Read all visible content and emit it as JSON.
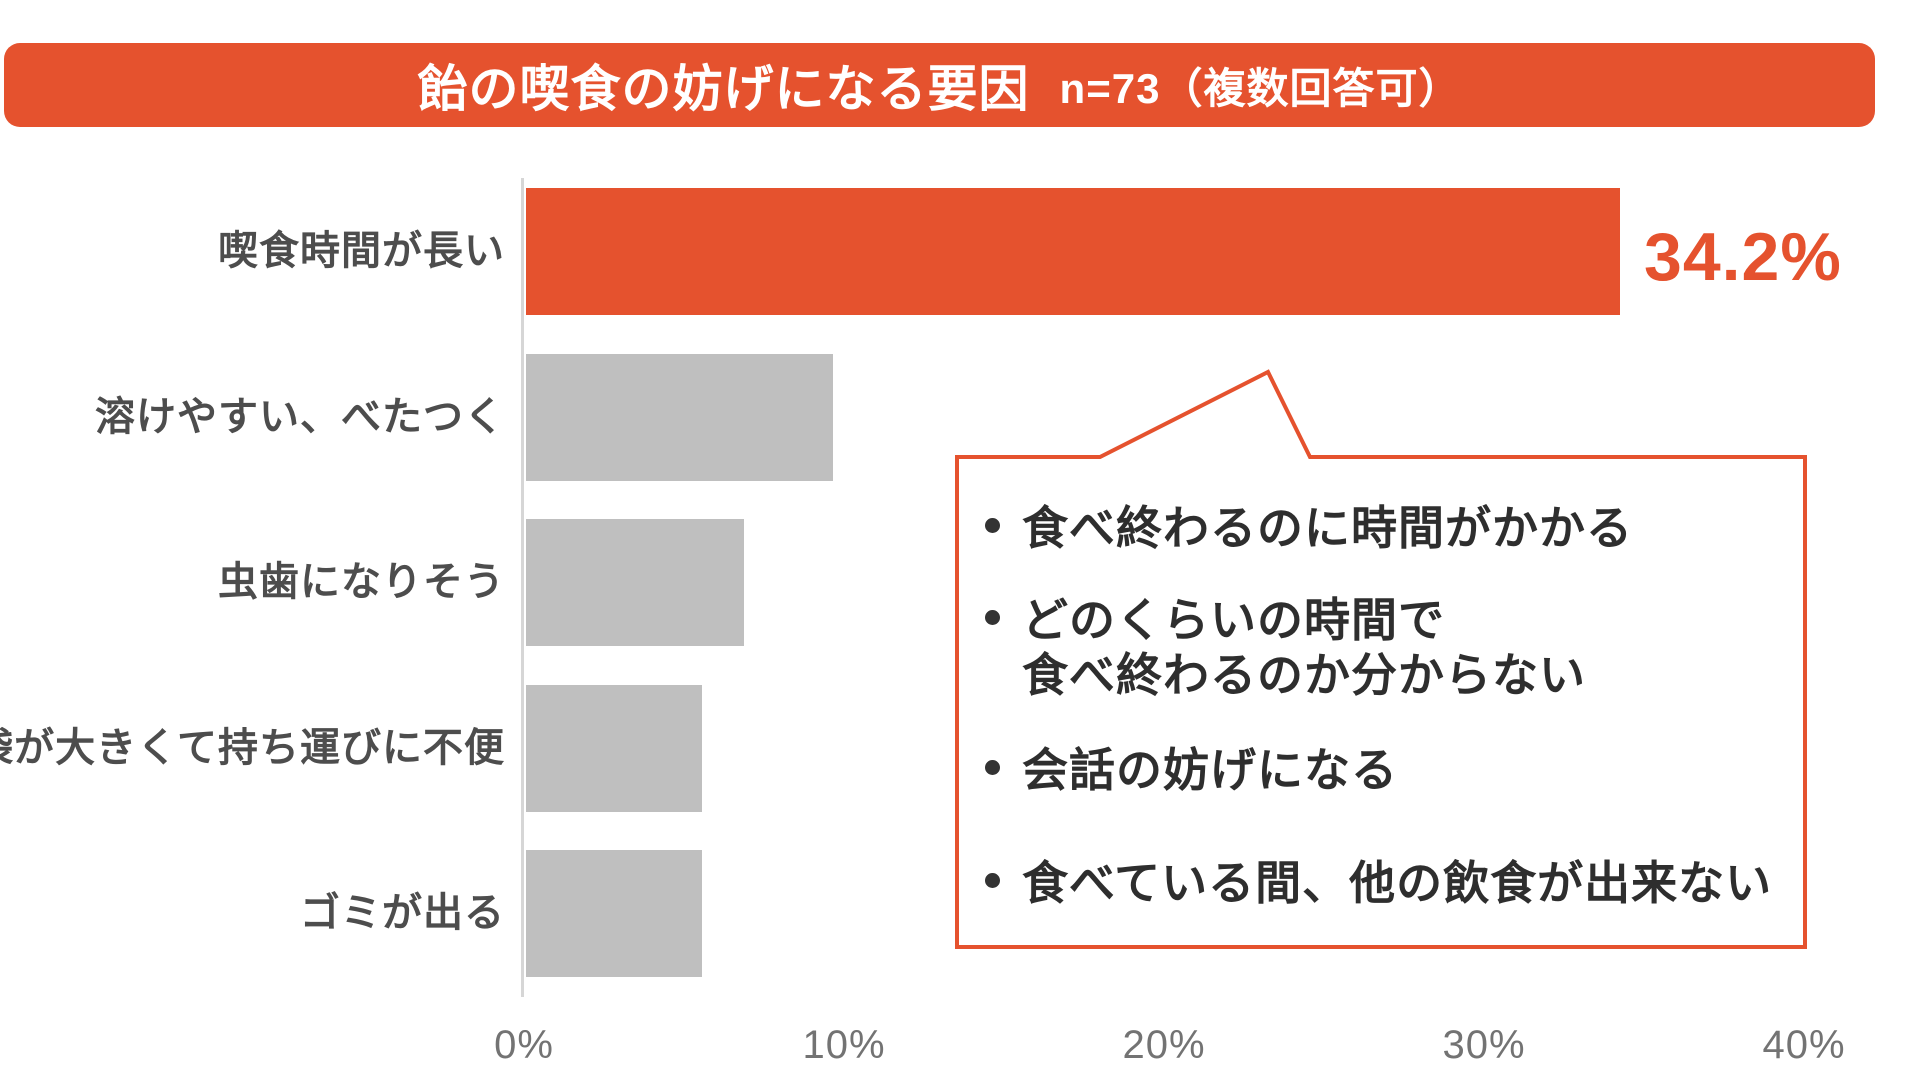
{
  "header": {
    "title": "飴の喫食の妨げになる要因",
    "sample_note": "n=73（複数回答可）"
  },
  "colors": {
    "accent_orange": "#E5522E",
    "bar_gray": "#BFBFBF",
    "category_label_gray": "#4D4D4D",
    "tick_label_gray": "#737373",
    "callout_text": "#2E2E2E",
    "axis_line_gray": "#D6D6D6",
    "bullet_dot": "#333333"
  },
  "chart_data": {
    "type": "bar",
    "orientation": "horizontal",
    "title": "飴の喫食の妨げになる要因",
    "sample_size": "n=73",
    "note": "複数回答可",
    "categories": [
      "喫食時間が長い",
      "溶けやすい、べたつく",
      "虫歯になりそう",
      "袋が大きくて持ち運びに不便",
      "ゴミが出る"
    ],
    "values": [
      34.2,
      9.6,
      6.8,
      5.5,
      5.5
    ],
    "unit": "%",
    "highlight_index": 0,
    "shown_value_labels": [
      "34.2%",
      "",
      "",
      "",
      ""
    ],
    "x_ticks": [
      0,
      10,
      20,
      30,
      40
    ],
    "x_tick_labels": [
      "0%",
      "10%",
      "20%",
      "30%",
      "40%"
    ],
    "xlim": [
      0,
      40
    ],
    "grid": false,
    "legend": false
  },
  "callout": {
    "lines": [
      {
        "bullet": true,
        "text": "食べ終わるのに時間がかかる"
      },
      {
        "bullet": true,
        "text": "どのくらいの時間で"
      },
      {
        "bullet": false,
        "text": "食べ終わるのか分からない"
      },
      {
        "bullet": true,
        "text": "会話の妨げになる"
      },
      {
        "bullet": true,
        "text": "食べている間、他の飲食が出来ない"
      }
    ]
  }
}
